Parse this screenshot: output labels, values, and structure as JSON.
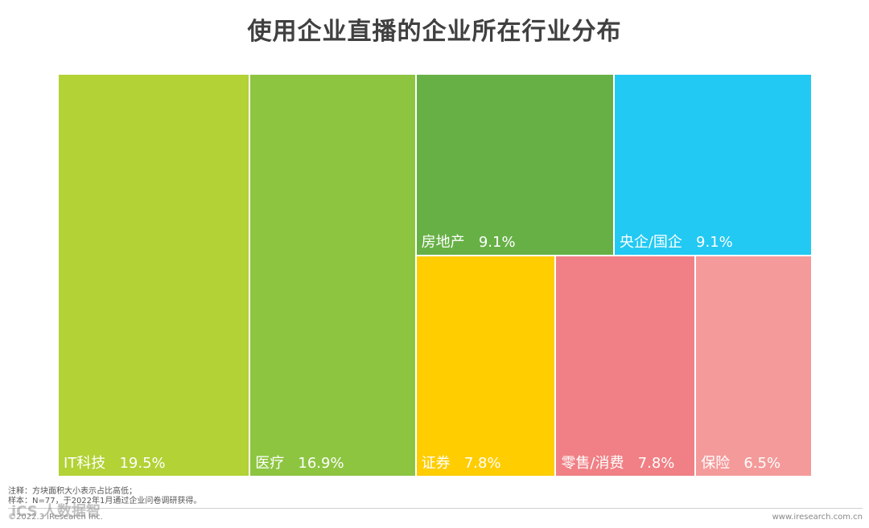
{
  "title": "使用企业直播的企业所在行业分布",
  "chart_data": {
    "type": "treemap",
    "title": "使用企业直播的企业所在行业分布",
    "unit": "%",
    "items": [
      {
        "name": "IT科技",
        "value": 19.5,
        "label": "19.5%",
        "color": "#b2d235"
      },
      {
        "name": "医疗",
        "value": 16.9,
        "label": "16.9%",
        "color": "#8dc541"
      },
      {
        "name": "房地产",
        "value": 9.1,
        "label": "9.1%",
        "color": "#67b046"
      },
      {
        "name": "央企/国企",
        "value": 9.1,
        "label": "9.1%",
        "color": "#22c9f2"
      },
      {
        "name": "证券",
        "value": 7.8,
        "label": "7.8%",
        "color": "#ffcd00"
      },
      {
        "name": "零售/消费",
        "value": 7.8,
        "label": "7.8%",
        "color": "#f08085"
      },
      {
        "name": "保险",
        "value": 6.5,
        "label": "6.5%",
        "color": "#f49a9a"
      }
    ]
  },
  "notes": {
    "line1": "注释：方块面积大小表示占比高低；",
    "line2": "样本：N=77，于2022年1月通过企业问卷调研获得。"
  },
  "footer": {
    "copyright": "©2022.3 iResearch Inc.",
    "brand": "iCS 人数据智",
    "site": "www.iresearch.com.cn"
  }
}
